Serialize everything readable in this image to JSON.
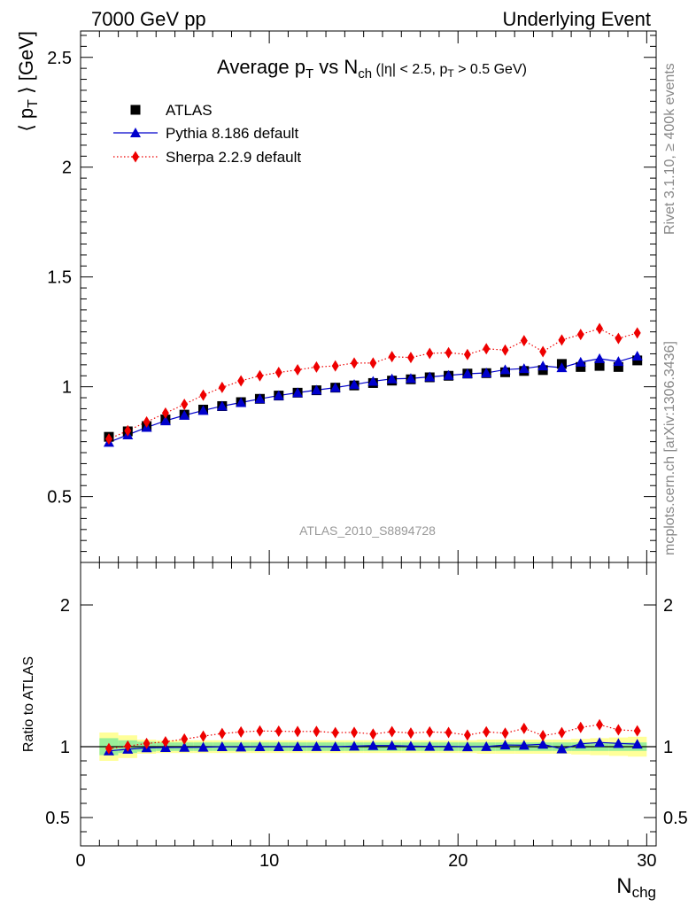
{
  "header": {
    "left": "7000 GeV pp",
    "right": "Underlying Event"
  },
  "side": {
    "rivet": "Rivet 3.1.10, ≥ 400k events",
    "mcplots": "mcplots.cern.ch [arXiv:1306.3436]"
  },
  "chart_data": [
    {
      "type": "scatter",
      "title_parts": [
        "Average p",
        "T",
        " vs N",
        "ch",
        " (|η| < 2.5, p",
        "T",
        " > 0.5 GeV)"
      ],
      "ylabel_parts": [
        "⟨ p",
        "T",
        " ⟩ [GeV]"
      ],
      "watermark": "ATLAS_2010_S8894728",
      "xlim": [
        0,
        30.5
      ],
      "ylim": [
        0.2,
        2.62
      ],
      "yticks": [
        0.5,
        1,
        1.5,
        2,
        2.5
      ],
      "ytick_labels": [
        "0.5",
        "1",
        "1.5",
        "2",
        "2.5"
      ],
      "grid": false,
      "legend_position": "top-left",
      "x": [
        1.5,
        2.5,
        3.5,
        4.5,
        5.5,
        6.5,
        7.5,
        8.5,
        9.5,
        10.5,
        11.5,
        12.5,
        13.5,
        14.5,
        15.5,
        16.5,
        17.5,
        18.5,
        19.5,
        20.5,
        21.5,
        22.5,
        23.5,
        24.5,
        25.5,
        26.5,
        27.5,
        28.5,
        29.5
      ],
      "series": [
        {
          "name": "ATLAS",
          "style": "marker-square",
          "color": "#000000",
          "values": [
            0.772,
            0.797,
            0.821,
            0.851,
            0.873,
            0.896,
            0.912,
            0.93,
            0.945,
            0.96,
            0.973,
            0.984,
            0.996,
            1.006,
            1.017,
            1.028,
            1.034,
            1.043,
            1.05,
            1.06,
            1.062,
            1.066,
            1.072,
            1.076,
            1.104,
            1.09,
            1.095,
            1.09,
            1.12
          ]
        },
        {
          "name": "Pythia 8.186 default",
          "style": "solid-triangle",
          "color": "#0000cc",
          "values": [
            0.747,
            0.781,
            0.815,
            0.845,
            0.87,
            0.892,
            0.912,
            0.928,
            0.945,
            0.96,
            0.973,
            0.985,
            0.996,
            1.01,
            1.025,
            1.036,
            1.038,
            1.045,
            1.052,
            1.059,
            1.063,
            1.078,
            1.083,
            1.095,
            1.087,
            1.112,
            1.128,
            1.115,
            1.14
          ]
        },
        {
          "name": "Sherpa 2.2.9 default",
          "style": "dotted-diamond",
          "color": "#ee0000",
          "values": [
            0.762,
            0.8,
            0.84,
            0.88,
            0.92,
            0.962,
            0.997,
            1.027,
            1.05,
            1.065,
            1.077,
            1.09,
            1.095,
            1.108,
            1.108,
            1.137,
            1.133,
            1.152,
            1.155,
            1.147,
            1.173,
            1.167,
            1.21,
            1.16,
            1.213,
            1.238,
            1.265,
            1.22,
            1.245
          ]
        }
      ]
    },
    {
      "type": "scatter",
      "ylabel": "Ratio to ATLAS",
      "xlabel_parts": [
        "N",
        "chg"
      ],
      "xlim": [
        0,
        30.5
      ],
      "ylim": [
        0.3,
        2.3
      ],
      "xticks": [
        0,
        10,
        20,
        30
      ],
      "xtick_labels": [
        "0",
        "10",
        "20",
        "30"
      ],
      "yticks": [
        0.5,
        1,
        2
      ],
      "ytick_labels": [
        "0.5",
        "1",
        "2"
      ],
      "reference": 1.0,
      "band_inner_halfwidth": [
        0.06,
        0.045,
        0.035,
        0.03,
        0.03,
        0.03,
        0.03,
        0.03,
        0.03,
        0.03,
        0.03,
        0.03,
        0.03,
        0.03,
        0.03,
        0.03,
        0.03,
        0.03,
        0.03,
        0.03,
        0.03,
        0.03,
        0.03,
        0.03,
        0.03,
        0.03,
        0.03,
        0.03,
        0.03
      ],
      "band_outer_halfwidth": [
        0.1,
        0.08,
        0.05,
        0.045,
        0.045,
        0.045,
        0.045,
        0.045,
        0.045,
        0.045,
        0.045,
        0.045,
        0.045,
        0.045,
        0.045,
        0.045,
        0.045,
        0.045,
        0.045,
        0.045,
        0.05,
        0.05,
        0.05,
        0.05,
        0.05,
        0.055,
        0.06,
        0.065,
        0.07
      ],
      "x": [
        1.5,
        2.5,
        3.5,
        4.5,
        5.5,
        6.5,
        7.5,
        8.5,
        9.5,
        10.5,
        11.5,
        12.5,
        13.5,
        14.5,
        15.5,
        16.5,
        17.5,
        18.5,
        19.5,
        20.5,
        21.5,
        22.5,
        23.5,
        24.5,
        25.5,
        26.5,
        27.5,
        28.5,
        29.5
      ],
      "series": [
        {
          "name": "Pythia 8.186 default",
          "color": "#0000cc",
          "values": [
            0.97,
            0.982,
            0.992,
            0.994,
            0.995,
            0.996,
            1.0,
            0.998,
            1.0,
            1.0,
            1.0,
            1.001,
            1.0,
            1.004,
            1.008,
            1.008,
            1.004,
            1.002,
            1.002,
            0.999,
            1.001,
            1.012,
            1.01,
            1.017,
            0.984,
            1.02,
            1.03,
            1.023,
            1.018
          ]
        },
        {
          "name": "Sherpa 2.2.9 default",
          "color": "#ee0000",
          "values": [
            0.987,
            1.004,
            1.023,
            1.034,
            1.054,
            1.074,
            1.093,
            1.104,
            1.111,
            1.109,
            1.107,
            1.108,
            1.099,
            1.101,
            1.089,
            1.106,
            1.096,
            1.104,
            1.1,
            1.082,
            1.105,
            1.095,
            1.129,
            1.078,
            1.099,
            1.136,
            1.155,
            1.119,
            1.112
          ]
        }
      ]
    }
  ]
}
